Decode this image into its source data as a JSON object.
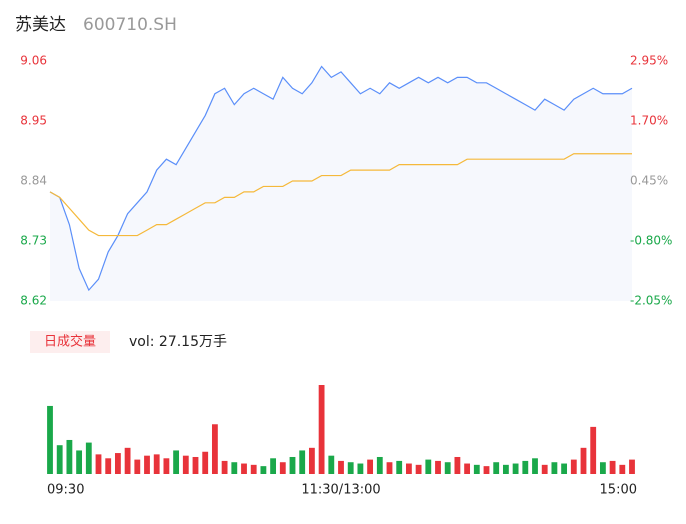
{
  "header": {
    "name": "苏美达",
    "code": "600710.SH"
  },
  "chart_data": [
    {
      "type": "line",
      "up_color": "#e8333a",
      "down_color": "#1aa84a",
      "neutral_color": "#999999",
      "fill": "#f6f8fd",
      "series": [
        {
          "color": "#5b8ff9",
          "values": [
            8.82,
            8.81,
            8.76,
            8.68,
            8.64,
            8.66,
            8.71,
            8.74,
            8.78,
            8.8,
            8.82,
            8.86,
            8.88,
            8.87,
            8.9,
            8.93,
            8.96,
            9.0,
            9.01,
            8.98,
            9.0,
            9.01,
            9.0,
            8.99,
            9.03,
            9.01,
            9.0,
            9.02,
            9.05,
            9.03,
            9.04,
            9.02,
            9.0,
            9.01,
            9.0,
            9.02,
            9.01,
            9.02,
            9.03,
            9.02,
            9.03,
            9.02,
            9.03,
            9.03,
            9.02,
            9.02,
            9.01,
            9.0,
            8.99,
            8.98,
            8.97,
            8.99,
            8.98,
            8.97,
            8.99,
            9.0,
            9.01,
            9.0,
            9.0,
            9.0,
            9.01
          ]
        },
        {
          "color": "#f5b93b",
          "values": [
            8.82,
            8.81,
            8.79,
            8.77,
            8.75,
            8.74,
            8.74,
            8.74,
            8.74,
            8.74,
            8.75,
            8.76,
            8.76,
            8.77,
            8.78,
            8.79,
            8.8,
            8.8,
            8.81,
            8.81,
            8.82,
            8.82,
            8.83,
            8.83,
            8.83,
            8.84,
            8.84,
            8.84,
            8.85,
            8.85,
            8.85,
            8.86,
            8.86,
            8.86,
            8.86,
            8.86,
            8.87,
            8.87,
            8.87,
            8.87,
            8.87,
            8.87,
            8.87,
            8.88,
            8.88,
            8.88,
            8.88,
            8.88,
            8.88,
            8.88,
            8.88,
            8.88,
            8.88,
            8.88,
            8.89,
            8.89,
            8.89,
            8.89,
            8.89,
            8.89,
            8.89
          ]
        }
      ],
      "ylim": [
        8.62,
        9.06
      ],
      "yticks": [
        9.06,
        8.95,
        8.84,
        8.73,
        8.62
      ],
      "y2lim": [
        -2.05,
        2.95
      ],
      "y2ticks": [
        {
          "value": 2.95,
          "label": "2.95%"
        },
        {
          "value": 1.7,
          "label": "1.70%"
        },
        {
          "value": 0.45,
          "label": "0.45%"
        },
        {
          "value": -0.8,
          "label": "-0.80%"
        },
        {
          "value": -2.05,
          "label": "-2.05%"
        }
      ]
    },
    {
      "type": "bar",
      "label": "日成交量",
      "summary": "vol: 27.15万手",
      "values": [
        5200,
        2200,
        2600,
        1800,
        2400,
        1500,
        1200,
        1600,
        2000,
        1100,
        1400,
        1500,
        1200,
        1800,
        1400,
        1300,
        1700,
        3800,
        1000,
        900,
        800,
        700,
        600,
        1200,
        900,
        1300,
        1800,
        2000,
        6800,
        1400,
        1000,
        900,
        800,
        1100,
        1300,
        900,
        1000,
        800,
        700,
        1100,
        1000,
        900,
        1300,
        800,
        700,
        600,
        900,
        700,
        800,
        1000,
        1200,
        700,
        900,
        800,
        1100,
        2000,
        3600,
        900,
        1000,
        700,
        1100
      ],
      "xticks": [
        {
          "value": 0,
          "label": "09:30"
        },
        {
          "value": 30,
          "label": "11:30/13:00"
        },
        {
          "value": 60,
          "label": "15:00"
        }
      ]
    }
  ]
}
